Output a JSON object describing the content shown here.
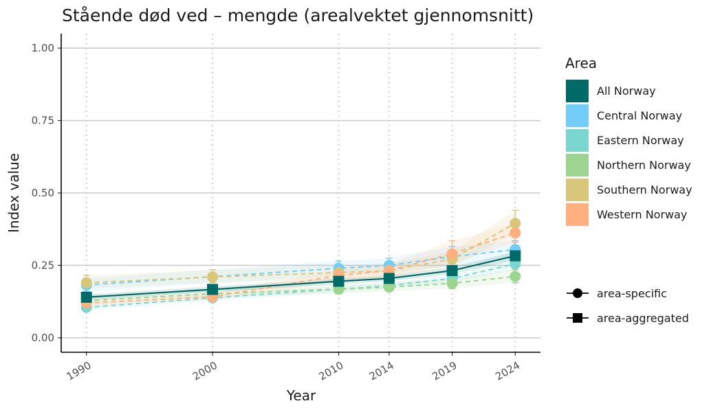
{
  "chart_data": {
    "type": "line",
    "title": "Stående død ved – mengde (arealvektet gjennomsnitt)",
    "xlabel": "Year",
    "ylabel": "Index value",
    "x": [
      1990,
      2000,
      2010,
      2014,
      2019,
      2024
    ],
    "x_tick_labels": [
      "1990",
      "2000",
      "2010",
      "2014",
      "2019",
      "2024"
    ],
    "xlim": [
      1988,
      2026
    ],
    "ylim": [
      -0.05,
      1.05
    ],
    "y_ticks": [
      0,
      0.25,
      0.5,
      0.75,
      1.0
    ],
    "y_tick_labels": [
      "0.00",
      "0.25",
      "0.50",
      "0.75",
      "1.00"
    ],
    "grid": {
      "horizontal": true,
      "vertical_dotted_at_x": true
    },
    "legend_placement": "right",
    "legend_title": "Area",
    "shape_legend": [
      {
        "label": "area-specific",
        "shape": "circle"
      },
      {
        "label": "area-aggregated",
        "shape": "square"
      }
    ],
    "series": [
      {
        "name": "Central Norway",
        "color": "#72CEF8",
        "marker": "circle",
        "line": "dashed",
        "values": [
          0.182,
          null,
          0.24,
          0.25,
          0.28,
          0.305
        ],
        "lower": [
          0.16,
          null,
          0.215,
          0.225,
          0.245,
          0.275
        ],
        "upper": [
          0.205,
          null,
          0.265,
          0.275,
          0.315,
          0.335
        ]
      },
      {
        "name": "Eastern Norway",
        "color": "#7AD6CF",
        "marker": "circle",
        "line": "dashed",
        "values": [
          0.105,
          0.138,
          0.168,
          0.18,
          0.205,
          0.255
        ],
        "lower": [
          0.095,
          0.128,
          0.158,
          0.17,
          0.19,
          0.235
        ],
        "upper": [
          0.115,
          0.148,
          0.178,
          0.19,
          0.22,
          0.275
        ]
      },
      {
        "name": "Northern Norway",
        "color": "#9DD48F",
        "marker": "circle",
        "line": "dashed",
        "values": [
          0.128,
          0.152,
          0.168,
          0.175,
          0.188,
          0.212
        ],
        "lower": [
          0.115,
          0.14,
          0.152,
          0.16,
          0.17,
          0.19
        ],
        "upper": [
          0.14,
          0.165,
          0.185,
          0.19,
          0.205,
          0.235
        ]
      },
      {
        "name": "Southern Norway",
        "color": "#D8C77A",
        "marker": "circle",
        "line": "dashed",
        "values": [
          0.19,
          0.21,
          0.225,
          0.232,
          0.272,
          0.395
        ],
        "lower": [
          0.17,
          0.19,
          0.2,
          0.21,
          0.245,
          0.36
        ],
        "upper": [
          0.215,
          0.235,
          0.25,
          0.255,
          0.3,
          0.44
        ]
      },
      {
        "name": "Western Norway",
        "color": "#FFB07E",
        "marker": "circle",
        "line": "dashed",
        "values": [
          0.12,
          0.142,
          0.215,
          0.232,
          0.29,
          0.362
        ],
        "lower": [
          0.11,
          0.13,
          0.195,
          0.21,
          0.255,
          0.33
        ],
        "upper": [
          0.13,
          0.155,
          0.235,
          0.255,
          0.335,
          0.395
        ]
      },
      {
        "name": "All Norway",
        "color": "#006B66",
        "marker": "square",
        "line": "solid",
        "values": [
          0.14,
          0.167,
          0.195,
          0.205,
          0.232,
          0.283
        ],
        "lower": [
          0.13,
          0.157,
          0.185,
          0.195,
          0.22,
          0.268
        ],
        "upper": [
          0.15,
          0.177,
          0.205,
          0.215,
          0.244,
          0.298
        ]
      }
    ],
    "legend_order": [
      "All Norway",
      "Central Norway",
      "Eastern Norway",
      "Northern Norway",
      "Southern Norway",
      "Western Norway"
    ]
  }
}
